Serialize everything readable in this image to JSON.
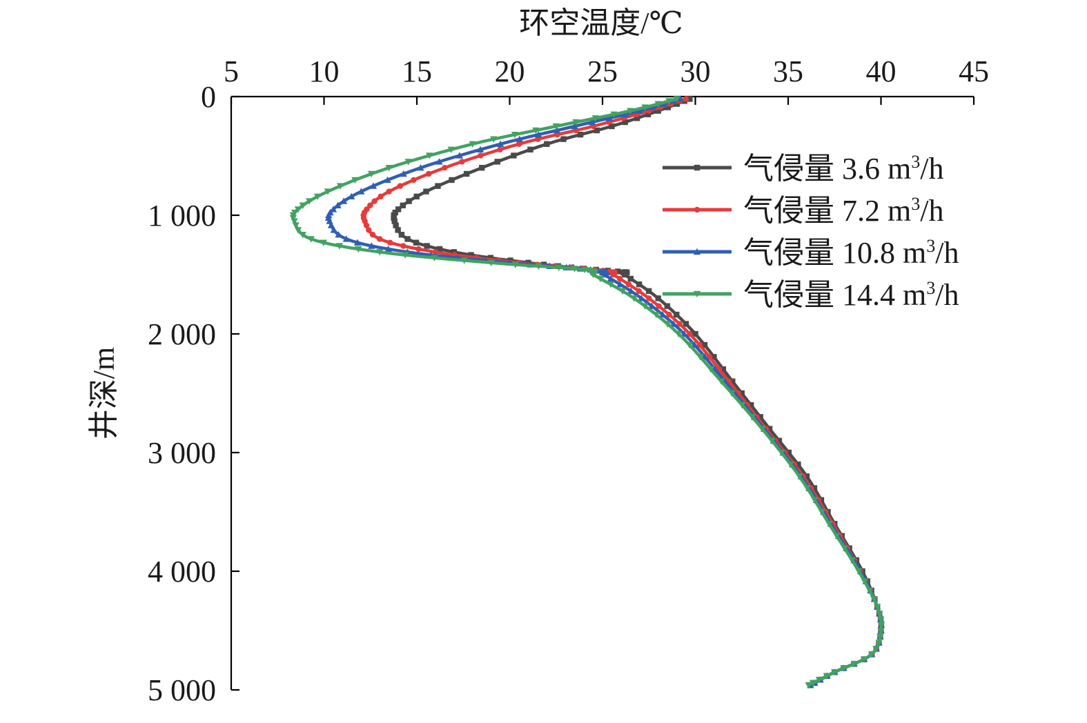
{
  "chart_data": {
    "type": "line",
    "orientation": "vertical-profile",
    "x_axis_position": "top",
    "y_axis_inverted": true,
    "grid": false,
    "legend_position": "top-right",
    "xlabel": "环空温度/℃",
    "ylabel": "井深/m",
    "xlim": [
      5,
      45
    ],
    "ylim": [
      0,
      5000
    ],
    "xticks": [
      5,
      10,
      15,
      20,
      25,
      30,
      35,
      40,
      45
    ],
    "xtick_labels": [
      "5",
      "10",
      "15",
      "20",
      "25",
      "30",
      "35",
      "40",
      "45"
    ],
    "yticks": [
      0,
      1000,
      2000,
      3000,
      4000,
      5000
    ],
    "ytick_labels": [
      "0",
      "1 000",
      "2 000",
      "3 000",
      "4 000",
      "5 000"
    ],
    "series": [
      {
        "name": "气侵量 3.6 m³/h",
        "legend_main": "气侵量 3.6 m",
        "legend_sup": "3",
        "legend_tail": "/h",
        "color": "#4a4a4a",
        "marker": "square",
        "points": [
          [
            29.7,
            20
          ],
          [
            28,
            120
          ],
          [
            25.5,
            250
          ],
          [
            22,
            400
          ],
          [
            18.5,
            600
          ],
          [
            15.5,
            800
          ],
          [
            14,
            950
          ],
          [
            13.8,
            1050
          ],
          [
            14.5,
            1200
          ],
          [
            17,
            1310
          ],
          [
            21,
            1400
          ],
          [
            24,
            1450
          ],
          [
            26.2,
            1480
          ],
          [
            26.2,
            1500
          ],
          [
            28,
            1700
          ],
          [
            30,
            2000
          ],
          [
            32,
            2400
          ],
          [
            34,
            2800
          ],
          [
            36,
            3200
          ],
          [
            37.5,
            3600
          ],
          [
            39,
            4000
          ],
          [
            39.8,
            4300
          ],
          [
            40,
            4500
          ],
          [
            39.5,
            4700
          ],
          [
            37.5,
            4850
          ],
          [
            36.2,
            4960
          ]
        ]
      },
      {
        "name": "气侵量 7.2 m³/h",
        "legend_main": "气侵量 7.2 m",
        "legend_sup": "3",
        "legend_tail": "/h",
        "color": "#e83a3a",
        "marker": "circle",
        "points": [
          [
            29.5,
            20
          ],
          [
            27.5,
            120
          ],
          [
            24.5,
            250
          ],
          [
            20.5,
            400
          ],
          [
            16.5,
            600
          ],
          [
            13.5,
            800
          ],
          [
            12.3,
            950
          ],
          [
            12.2,
            1050
          ],
          [
            13,
            1200
          ],
          [
            16,
            1310
          ],
          [
            20.5,
            1400
          ],
          [
            24,
            1450
          ],
          [
            25.6,
            1480
          ],
          [
            25.6,
            1500
          ],
          [
            27.5,
            1700
          ],
          [
            29.7,
            2000
          ],
          [
            31.8,
            2400
          ],
          [
            33.8,
            2800
          ],
          [
            35.8,
            3200
          ],
          [
            37.4,
            3600
          ],
          [
            38.9,
            4000
          ],
          [
            39.8,
            4300
          ],
          [
            40,
            4500
          ],
          [
            39.5,
            4700
          ],
          [
            37.5,
            4850
          ],
          [
            36.2,
            4960
          ]
        ]
      },
      {
        "name": "气侵量 10.8 m³/h",
        "legend_main": "气侵量 10.8 m",
        "legend_sup": "3",
        "legend_tail": "/h",
        "color": "#2f5fb3",
        "marker": "triangle-up",
        "points": [
          [
            29.2,
            20
          ],
          [
            27,
            120
          ],
          [
            23.5,
            250
          ],
          [
            19.5,
            400
          ],
          [
            15.2,
            600
          ],
          [
            12,
            800
          ],
          [
            10.5,
            950
          ],
          [
            10.3,
            1050
          ],
          [
            11.2,
            1200
          ],
          [
            14.5,
            1310
          ],
          [
            20,
            1400
          ],
          [
            23.8,
            1450
          ],
          [
            25.2,
            1480
          ],
          [
            25.1,
            1500
          ],
          [
            27.1,
            1700
          ],
          [
            29.4,
            2000
          ],
          [
            31.6,
            2400
          ],
          [
            33.7,
            2800
          ],
          [
            35.7,
            3200
          ],
          [
            37.3,
            3600
          ],
          [
            38.9,
            4000
          ],
          [
            39.8,
            4300
          ],
          [
            40,
            4500
          ],
          [
            39.5,
            4700
          ],
          [
            37.5,
            4850
          ],
          [
            36.2,
            4960
          ]
        ]
      },
      {
        "name": "气侵量 14.4 m³/h",
        "legend_main": "气侵量 14.4 m",
        "legend_sup": "3",
        "legend_tail": "/h",
        "color": "#43a262",
        "marker": "triangle-down",
        "points": [
          [
            29,
            20
          ],
          [
            26.5,
            120
          ],
          [
            22.5,
            250
          ],
          [
            18,
            400
          ],
          [
            13.5,
            600
          ],
          [
            10.2,
            800
          ],
          [
            8.6,
            950
          ],
          [
            8.4,
            1050
          ],
          [
            9.3,
            1200
          ],
          [
            13,
            1310
          ],
          [
            19,
            1400
          ],
          [
            23.5,
            1450
          ],
          [
            24.6,
            1480
          ],
          [
            24.5,
            1500
          ],
          [
            26.7,
            1700
          ],
          [
            29.1,
            2000
          ],
          [
            31.4,
            2400
          ],
          [
            33.6,
            2800
          ],
          [
            35.6,
            3200
          ],
          [
            37.2,
            3600
          ],
          [
            38.8,
            4000
          ],
          [
            39.8,
            4300
          ],
          [
            40,
            4500
          ],
          [
            39.5,
            4700
          ],
          [
            37.5,
            4850
          ],
          [
            36.1,
            4960
          ]
        ]
      }
    ]
  }
}
